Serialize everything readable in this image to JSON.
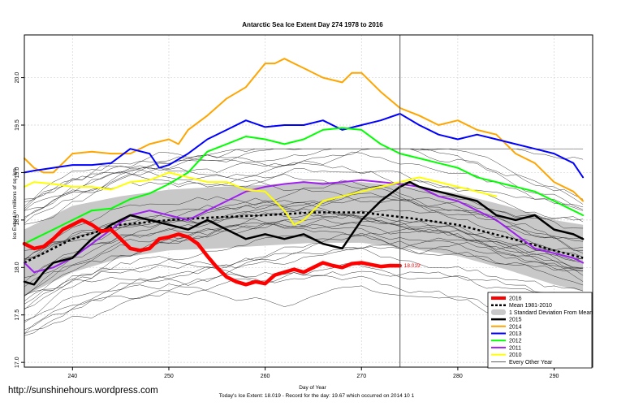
{
  "watermark": "http://sunshinehours.wordpress.com",
  "chart_data": {
    "type": "line",
    "title": "Antarctic Sea Ice Extent Day 274 1978 to 2016",
    "xlabel": "Day of Year",
    "ylabel": "Ice Extent in millions of sq. km.",
    "footnote": "Today's Ice Extent: 18.019  - Record for the day: 19.67 which occurred on 2014 10 1",
    "xlim": [
      235,
      294
    ],
    "ylim": [
      16.95,
      20.45
    ],
    "x_ticks": [
      240,
      250,
      260,
      270,
      280,
      290
    ],
    "x_tick_labels": [
      "240",
      "250",
      "260",
      "270",
      "280",
      "290"
    ],
    "y_ticks": [
      17.0,
      17.5,
      18.0,
      18.5,
      19.0,
      19.5,
      20.0
    ],
    "y_tick_labels": [
      "17.0",
      "17.5",
      "18.0",
      "18.5",
      "19.0",
      "19.5",
      "20.0"
    ],
    "grid": true,
    "today_day": 274,
    "today_label": "18.019",
    "legend_position": "bottom-right",
    "legend": [
      {
        "label": "2016",
        "color": "#ff0000",
        "style": "thick"
      },
      {
        "label": "Mean 1981-2010",
        "color": "#000000",
        "style": "dashed"
      },
      {
        "label": "1 Standard Deviation From Mean",
        "color": "#c8c8c8",
        "style": "band"
      },
      {
        "label": "2015",
        "color": "#000000",
        "style": "bold"
      },
      {
        "label": "2014",
        "color": "#ffa500",
        "style": "line"
      },
      {
        "label": "2013",
        "color": "#0000ff",
        "style": "line"
      },
      {
        "label": "2012",
        "color": "#00ff00",
        "style": "line"
      },
      {
        "label": "2011",
        "color": "#a020f0",
        "style": "line"
      },
      {
        "label": "2010",
        "color": "#ffff00",
        "style": "line"
      },
      {
        "label": "Every Other Year",
        "color": "#000000",
        "style": "thin"
      }
    ],
    "mean": {
      "x": [
        235,
        240,
        245,
        250,
        255,
        260,
        265,
        270,
        275,
        280,
        285,
        290,
        293
      ],
      "y": [
        18.05,
        18.3,
        18.45,
        18.5,
        18.53,
        18.55,
        18.58,
        18.58,
        18.52,
        18.45,
        18.32,
        18.18,
        18.1
      ]
    },
    "std_band": {
      "x": [
        235,
        240,
        245,
        250,
        255,
        260,
        265,
        270,
        275,
        280,
        285,
        290,
        293
      ],
      "upper": [
        18.4,
        18.65,
        18.75,
        18.82,
        18.85,
        18.87,
        18.9,
        18.9,
        18.85,
        18.78,
        18.65,
        18.5,
        18.45
      ],
      "lower": [
        17.7,
        17.95,
        18.1,
        18.18,
        18.2,
        18.23,
        18.26,
        18.26,
        18.2,
        18.12,
        17.98,
        17.82,
        17.75
      ]
    },
    "series": [
      {
        "name": "2014",
        "color": "#ffa500",
        "width": 2,
        "x": [
          235,
          236,
          237,
          238,
          239,
          240,
          242,
          244,
          246,
          248,
          250,
          251,
          252,
          254,
          256,
          258,
          260,
          261,
          262,
          263,
          264,
          266,
          268,
          269,
          270,
          272,
          274,
          276,
          278,
          280,
          282,
          284,
          286,
          288,
          290,
          292,
          293
        ],
        "y": [
          19.15,
          19.05,
          19.0,
          19.0,
          19.1,
          19.2,
          19.22,
          19.2,
          19.2,
          19.3,
          19.35,
          19.3,
          19.45,
          19.6,
          19.78,
          19.9,
          20.15,
          20.15,
          20.2,
          20.15,
          20.1,
          20.0,
          19.95,
          20.05,
          20.05,
          19.85,
          19.68,
          19.6,
          19.5,
          19.55,
          19.45,
          19.4,
          19.2,
          19.1,
          18.9,
          18.8,
          18.7
        ]
      },
      {
        "name": "2013",
        "color": "#0000ff",
        "width": 2,
        "x": [
          235,
          236,
          238,
          240,
          242,
          244,
          246,
          248,
          249,
          250,
          252,
          254,
          256,
          258,
          260,
          262,
          264,
          266,
          268,
          270,
          272,
          274,
          276,
          278,
          280,
          282,
          284,
          286,
          288,
          290,
          292,
          293
        ],
        "y": [
          19.0,
          19.02,
          19.05,
          19.08,
          19.08,
          19.1,
          19.25,
          19.2,
          19.05,
          19.08,
          19.2,
          19.35,
          19.45,
          19.55,
          19.48,
          19.5,
          19.5,
          19.55,
          19.45,
          19.5,
          19.55,
          19.62,
          19.5,
          19.4,
          19.35,
          19.4,
          19.35,
          19.3,
          19.25,
          19.2,
          19.1,
          18.95
        ]
      },
      {
        "name": "2012",
        "color": "#00ff00",
        "width": 2,
        "x": [
          235,
          236,
          238,
          240,
          242,
          244,
          246,
          248,
          250,
          252,
          254,
          256,
          258,
          260,
          262,
          264,
          266,
          268,
          270,
          272,
          274,
          276,
          278,
          280,
          282,
          284,
          286,
          288,
          290,
          292,
          293
        ],
        "y": [
          18.25,
          18.3,
          18.4,
          18.5,
          18.6,
          18.62,
          18.72,
          18.78,
          18.88,
          19.0,
          19.22,
          19.3,
          19.38,
          19.35,
          19.3,
          19.35,
          19.45,
          19.47,
          19.45,
          19.3,
          19.2,
          19.15,
          19.1,
          19.05,
          18.95,
          18.9,
          18.85,
          18.8,
          18.7,
          18.6,
          18.55
        ]
      },
      {
        "name": "2011",
        "color": "#a020f0",
        "width": 2,
        "x": [
          235,
          236,
          238,
          240,
          242,
          244,
          246,
          248,
          250,
          252,
          254,
          256,
          258,
          260,
          262,
          264,
          266,
          268,
          270,
          272,
          274,
          276,
          278,
          280,
          282,
          284,
          286,
          288,
          290,
          292,
          293
        ],
        "y": [
          18.05,
          17.95,
          18.0,
          18.1,
          18.25,
          18.4,
          18.55,
          18.6,
          18.55,
          18.5,
          18.6,
          18.7,
          18.8,
          18.85,
          18.88,
          18.9,
          18.88,
          18.9,
          18.92,
          18.9,
          18.88,
          18.85,
          18.75,
          18.7,
          18.6,
          18.5,
          18.35,
          18.2,
          18.15,
          18.1,
          18.05
        ]
      },
      {
        "name": "2010",
        "color": "#ffff00",
        "width": 2,
        "x": [
          235,
          236,
          238,
          240,
          242,
          244,
          246,
          248,
          250,
          252,
          254,
          256,
          258,
          260,
          262,
          263,
          264,
          266,
          268,
          270,
          272,
          274,
          276,
          278,
          280,
          282,
          284
        ],
        "y": [
          18.85,
          18.9,
          18.88,
          18.85,
          18.85,
          18.82,
          18.9,
          18.92,
          19.0,
          18.95,
          18.9,
          18.9,
          18.82,
          18.8,
          18.6,
          18.45,
          18.5,
          18.7,
          18.75,
          18.8,
          18.85,
          18.9,
          18.95,
          18.9,
          18.85,
          18.8,
          18.75
        ]
      },
      {
        "name": "2015",
        "color": "#000000",
        "width": 2.5,
        "x": [
          235,
          236,
          237,
          238,
          240,
          242,
          244,
          246,
          248,
          250,
          252,
          254,
          256,
          258,
          260,
          262,
          264,
          266,
          268,
          270,
          272,
          274,
          275,
          276,
          278,
          280,
          282,
          284,
          286,
          288,
          290,
          292,
          293
        ],
        "y": [
          17.85,
          17.82,
          17.95,
          18.05,
          18.1,
          18.3,
          18.45,
          18.55,
          18.5,
          18.45,
          18.4,
          18.5,
          18.4,
          18.3,
          18.35,
          18.3,
          18.35,
          18.25,
          18.2,
          18.5,
          18.7,
          18.85,
          18.9,
          18.85,
          18.8,
          18.75,
          18.7,
          18.55,
          18.5,
          18.55,
          18.4,
          18.35,
          18.3
        ]
      },
      {
        "name": "2016",
        "color": "#ff0000",
        "width": 4.5,
        "x": [
          235,
          236,
          237,
          238,
          239,
          240,
          241,
          242,
          243,
          244,
          245,
          246,
          247,
          248,
          249,
          250,
          251,
          252,
          253,
          254,
          255,
          256,
          257,
          258,
          259,
          260,
          261,
          262,
          263,
          264,
          265,
          266,
          267,
          268,
          269,
          270,
          271,
          272,
          273,
          274
        ],
        "y": [
          18.25,
          18.2,
          18.22,
          18.3,
          18.4,
          18.45,
          18.5,
          18.45,
          18.38,
          18.4,
          18.3,
          18.2,
          18.18,
          18.2,
          18.3,
          18.32,
          18.35,
          18.32,
          18.25,
          18.12,
          18.0,
          17.9,
          17.85,
          17.82,
          17.85,
          17.83,
          17.92,
          17.95,
          17.98,
          17.95,
          18.0,
          18.05,
          18.02,
          18.0,
          18.04,
          18.05,
          18.03,
          18.01,
          18.02,
          18.019
        ]
      }
    ],
    "other_years_note": "Every Other Year: many thin black lines spread roughly between 17.4 and 19.1"
  }
}
